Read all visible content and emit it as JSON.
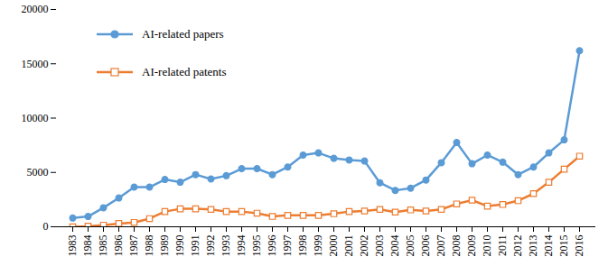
{
  "chart_data": {
    "type": "line",
    "x": [
      1983,
      1984,
      1985,
      1986,
      1987,
      1988,
      1989,
      1990,
      1991,
      1992,
      1993,
      1994,
      1995,
      1996,
      1997,
      1998,
      1999,
      2000,
      2001,
      2002,
      2003,
      2004,
      2005,
      2006,
      2007,
      2008,
      2009,
      2010,
      2011,
      2012,
      2013,
      2014,
      2015,
      2016
    ],
    "series": [
      {
        "name": "AI-related papers",
        "color": "#5B9BD5",
        "marker": "circle",
        "values": [
          800,
          950,
          1750,
          2650,
          3650,
          3650,
          4350,
          4100,
          4800,
          4400,
          4700,
          5350,
          5350,
          4800,
          5500,
          6600,
          6800,
          6300,
          6150,
          6050,
          4050,
          3350,
          3550,
          4300,
          5900,
          7750,
          5800,
          6600,
          5950,
          4800,
          5500,
          6800,
          8000,
          16200
        ]
      },
      {
        "name": "AI-related patents",
        "color": "#ED7D31",
        "marker": "open-square",
        "values": [
          0,
          50,
          150,
          300,
          400,
          750,
          1400,
          1650,
          1650,
          1600,
          1400,
          1400,
          1250,
          950,
          1050,
          1050,
          1050,
          1200,
          1400,
          1450,
          1600,
          1350,
          1550,
          1450,
          1600,
          2100,
          2450,
          1900,
          2050,
          2400,
          3050,
          4100,
          5300,
          6500
        ]
      }
    ],
    "ylim": [
      0,
      20000
    ],
    "yticks": [
      0,
      5000,
      10000,
      15000,
      20000
    ],
    "grid": false,
    "legend": "top-left"
  }
}
